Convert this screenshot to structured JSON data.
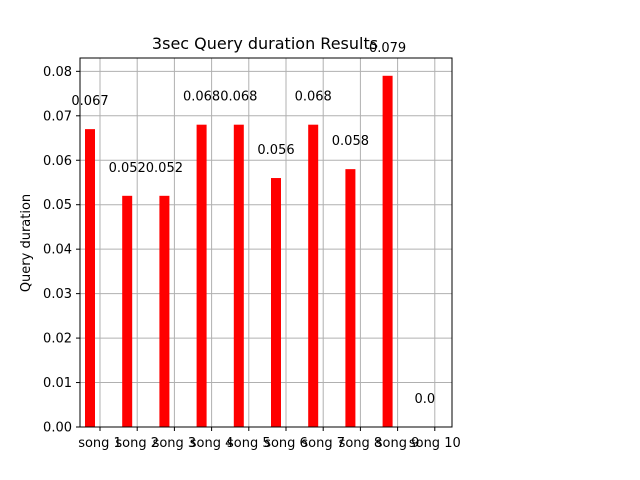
{
  "chart_data": {
    "type": "bar",
    "title": "3sec Query duration Results",
    "xlabel": "",
    "ylabel": "Query duration",
    "categories": [
      "song 1",
      "song 2",
      "song 3",
      "song 4",
      "song 5",
      "song 6",
      "song 7",
      "song 8",
      "song 9",
      "song 10"
    ],
    "values": [
      0.067,
      0.052,
      0.052,
      0.068,
      0.068,
      0.056,
      0.068,
      0.058,
      0.079,
      0.0
    ],
    "value_labels": [
      "0.067",
      "0.052",
      "0.052",
      "0.068",
      "0.068",
      "0.056",
      "0.068",
      "0.058",
      "0.079",
      "0.0"
    ],
    "ylim": [
      0,
      0.083
    ],
    "yticks": [
      0.0,
      0.01,
      0.02,
      0.03,
      0.04,
      0.05,
      0.06,
      0.07,
      0.08
    ],
    "ytick_labels": [
      "0.00",
      "0.01",
      "0.02",
      "0.03",
      "0.04",
      "0.05",
      "0.06",
      "0.07",
      "0.08"
    ],
    "grid": true,
    "bar_color": "#ff0000",
    "grid_color": "#b0b0b0"
  }
}
